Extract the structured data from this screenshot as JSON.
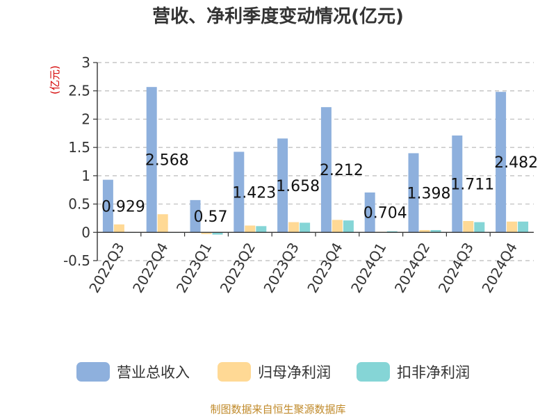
{
  "chart_data": {
    "type": "bar",
    "title": "营收、净利季度变动情况(亿元)",
    "ylabel": "(亿元)",
    "categories": [
      "2022Q3",
      "2022Q4",
      "2023Q1",
      "2023Q2",
      "2023Q3",
      "2023Q4",
      "2024Q1",
      "2024Q2",
      "2024Q3",
      "2024Q4"
    ],
    "ylim": [
      -0.5,
      3
    ],
    "yticks": [
      "-0.5",
      "0",
      "0.5",
      "1",
      "1.5",
      "2",
      "2.5",
      "3"
    ],
    "grid": true,
    "legend_position": "bottom",
    "series": [
      {
        "name": "营业总收入",
        "color": "#8eb0dd",
        "values": [
          0.929,
          2.568,
          0.57,
          1.423,
          1.658,
          2.212,
          0.704,
          1.398,
          1.711,
          2.482
        ],
        "labels": [
          "0.929",
          "2.568",
          "0.57",
          "1.423",
          "1.658",
          "2.212",
          "0.704",
          "1.398",
          "1.711",
          "2.482"
        ]
      },
      {
        "name": "归母净利润",
        "color": "#ffd995",
        "values": [
          0.14,
          0.32,
          -0.03,
          0.12,
          0.18,
          0.22,
          0.01,
          0.04,
          0.2,
          0.19
        ]
      },
      {
        "name": "扣非净利润",
        "color": "#85d5d6",
        "values": [
          0.0,
          0.0,
          -0.04,
          0.11,
          0.17,
          0.21,
          0.02,
          0.04,
          0.18,
          0.19
        ]
      }
    ]
  },
  "source": "制图数据来自恒生聚源数据库"
}
